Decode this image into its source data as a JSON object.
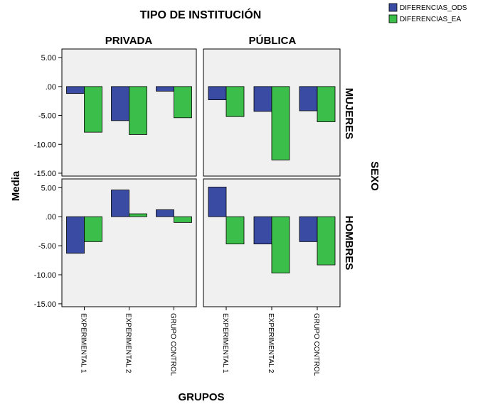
{
  "chart_data": {
    "type": "bar",
    "title": "TIPO DE INSTITUCIÓN",
    "xlabel": "GRUPOS",
    "ylabel": "Media",
    "row_facet_title": "SEXO",
    "col_facets": [
      "PRIVADA",
      "PÚBLICA"
    ],
    "row_facets": [
      "MUJERES",
      "HOMBRES"
    ],
    "categories": [
      "EXPERIMENTAL 1",
      "EXPERIMENTAL 2",
      "GRUPO CONTROL"
    ],
    "y_ticks": [
      "5.00",
      ".00",
      "-5.00",
      "-10.00",
      "-15.00"
    ],
    "ylim": [
      -15.5,
      6.5
    ],
    "grid": false,
    "legend_position": "top-right",
    "series": [
      {
        "name": "DIFERENCIAS_ODS",
        "color": "#3a4ba3"
      },
      {
        "name": "DIFERENCIAS_EA",
        "color": "#3cbf4a"
      }
    ],
    "panels": [
      {
        "row": "MUJERES",
        "col": "PRIVADA",
        "DIFERENCIAS_ODS": [
          -1.2,
          -5.9,
          -0.8
        ],
        "DIFERENCIAS_EA": [
          -7.9,
          -8.3,
          -5.4
        ]
      },
      {
        "row": "MUJERES",
        "col": "PÚBLICA",
        "DIFERENCIAS_ODS": [
          -2.3,
          -4.3,
          -4.2
        ],
        "DIFERENCIAS_EA": [
          -5.2,
          -12.7,
          -6.1
        ]
      },
      {
        "row": "HOMBRES",
        "col": "PRIVADA",
        "DIFERENCIAS_ODS": [
          -6.3,
          4.6,
          1.2
        ],
        "DIFERENCIAS_EA": [
          -4.3,
          0.5,
          -1.0
        ]
      },
      {
        "row": "HOMBRES",
        "col": "PÚBLICA",
        "DIFERENCIAS_ODS": [
          5.1,
          -4.7,
          -4.3
        ],
        "DIFERENCIAS_EA": [
          -4.7,
          -9.7,
          -8.3
        ]
      }
    ]
  }
}
